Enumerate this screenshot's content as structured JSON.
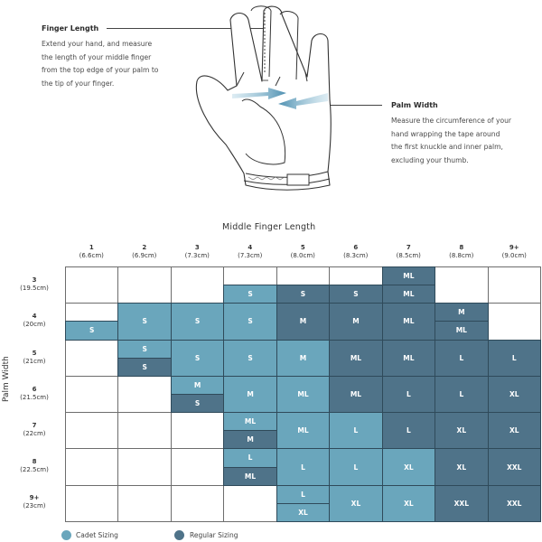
{
  "instructions": {
    "finger_length": {
      "heading": "Finger Length",
      "lines": [
        "Extend your hand, and measure",
        "the length of your middle finger",
        "from the top edge of your palm to",
        "the tip of your finger."
      ]
    },
    "palm_width": {
      "heading": "Palm Width",
      "lines": [
        "Measure the circumference of your",
        "hand wrapping the tape around",
        "the first knuckle and inner palm,",
        "excluding your thumb."
      ]
    }
  },
  "chart": {
    "x_title": "Middle Finger Length",
    "y_title": "Palm Width",
    "columns": [
      {
        "n": "1",
        "cm": "(6.6cm)"
      },
      {
        "n": "2",
        "cm": "(6.9cm)"
      },
      {
        "n": "3",
        "cm": "(7.3cm)"
      },
      {
        "n": "4",
        "cm": "(7.3cm)"
      },
      {
        "n": "5",
        "cm": "(8.0cm)"
      },
      {
        "n": "6",
        "cm": "(8.3cm)"
      },
      {
        "n": "7",
        "cm": "(8.5cm)"
      },
      {
        "n": "8",
        "cm": "(8.8cm)"
      },
      {
        "n": "9+",
        "cm": "(9.0cm)"
      }
    ],
    "rows": [
      {
        "n": "3",
        "cm": "(19.5cm)"
      },
      {
        "n": "4",
        "cm": "(20cm)"
      },
      {
        "n": "5",
        "cm": "(21cm)"
      },
      {
        "n": "6",
        "cm": "(21.5cm)"
      },
      {
        "n": "7",
        "cm": "(22cm)"
      },
      {
        "n": "8",
        "cm": "(22.5cm)"
      },
      {
        "n": "9+",
        "cm": "(23cm)"
      }
    ],
    "legend": {
      "cadet": {
        "label": "Cadet Sizing",
        "color": "#6aa6bc"
      },
      "regular": {
        "label": "Regular Sizing",
        "color": "#4f7389"
      }
    }
  },
  "chart_data": {
    "type": "table",
    "title": "Middle Finger Length vs Palm Width glove size chart",
    "xlabel": "Middle Finger Length",
    "ylabel": "Palm Width",
    "x_categories": [
      "1 (6.6cm)",
      "2 (6.9cm)",
      "3 (7.3cm)",
      "4 (7.3cm)",
      "5 (8.0cm)",
      "6 (8.3cm)",
      "7 (8.5cm)",
      "8 (8.8cm)",
      "9+ (9.0cm)"
    ],
    "y_categories": [
      "3 (19.5cm)",
      "4 (20cm)",
      "5 (21cm)",
      "6 (21.5cm)",
      "7 (22cm)",
      "8 (22.5cm)",
      "9+ (23cm)"
    ],
    "legend": [
      "Cadet Sizing",
      "Regular Sizing"
    ],
    "blocks": [
      {
        "row": 0,
        "col": 3,
        "part": "bottom",
        "size": "S",
        "type": "cadet"
      },
      {
        "row": 0,
        "col": 4,
        "part": "bottom",
        "size": "S",
        "type": "regular"
      },
      {
        "row": 0,
        "col": 5,
        "part": "bottom",
        "size": "S",
        "type": "regular"
      },
      {
        "row": 0,
        "col": 6,
        "part": "top",
        "size": "ML",
        "type": "regular"
      },
      {
        "row": 0,
        "col": 6,
        "part": "bottom",
        "size": "ML",
        "type": "regular"
      },
      {
        "row": 1,
        "col": 0,
        "part": "bottom",
        "size": "S",
        "type": "cadet"
      },
      {
        "row": 1,
        "col": 1,
        "part": "full",
        "size": "S",
        "type": "cadet"
      },
      {
        "row": 1,
        "col": 2,
        "part": "full",
        "size": "S",
        "type": "cadet"
      },
      {
        "row": 1,
        "col": 3,
        "part": "full",
        "size": "S",
        "type": "cadet"
      },
      {
        "row": 1,
        "col": 4,
        "part": "full",
        "size": "M",
        "type": "regular"
      },
      {
        "row": 1,
        "col": 5,
        "part": "full",
        "size": "M",
        "type": "regular"
      },
      {
        "row": 1,
        "col": 6,
        "part": "full",
        "size": "ML",
        "type": "regular"
      },
      {
        "row": 1,
        "col": 7,
        "part": "top",
        "size": "M",
        "type": "regular"
      },
      {
        "row": 1,
        "col": 7,
        "part": "bottom",
        "size": "ML",
        "type": "regular"
      },
      {
        "row": 2,
        "col": 1,
        "part": "top",
        "size": "S",
        "type": "cadet"
      },
      {
        "row": 2,
        "col": 1,
        "part": "bottom",
        "size": "S",
        "type": "regular"
      },
      {
        "row": 2,
        "col": 2,
        "part": "full",
        "size": "S",
        "type": "cadet"
      },
      {
        "row": 2,
        "col": 3,
        "part": "full",
        "size": "S",
        "type": "cadet"
      },
      {
        "row": 2,
        "col": 4,
        "part": "full",
        "size": "M",
        "type": "cadet"
      },
      {
        "row": 2,
        "col": 5,
        "part": "full",
        "size": "ML",
        "type": "regular"
      },
      {
        "row": 2,
        "col": 6,
        "part": "full",
        "size": "ML",
        "type": "regular"
      },
      {
        "row": 2,
        "col": 7,
        "part": "full",
        "size": "L",
        "type": "regular"
      },
      {
        "row": 2,
        "col": 8,
        "part": "full",
        "size": "L",
        "type": "regular"
      },
      {
        "row": 3,
        "col": 2,
        "part": "top",
        "size": "M",
        "type": "cadet"
      },
      {
        "row": 3,
        "col": 2,
        "part": "bottom",
        "size": "S",
        "type": "regular"
      },
      {
        "row": 3,
        "col": 3,
        "part": "full",
        "size": "M",
        "type": "cadet"
      },
      {
        "row": 3,
        "col": 4,
        "part": "full",
        "size": "ML",
        "type": "cadet"
      },
      {
        "row": 3,
        "col": 5,
        "part": "full",
        "size": "ML",
        "type": "regular"
      },
      {
        "row": 3,
        "col": 6,
        "part": "full",
        "size": "L",
        "type": "regular"
      },
      {
        "row": 3,
        "col": 7,
        "part": "full",
        "size": "L",
        "type": "regular"
      },
      {
        "row": 3,
        "col": 8,
        "part": "full",
        "size": "XL",
        "type": "regular"
      },
      {
        "row": 4,
        "col": 3,
        "part": "top",
        "size": "ML",
        "type": "cadet"
      },
      {
        "row": 4,
        "col": 3,
        "part": "bottom",
        "size": "M",
        "type": "regular"
      },
      {
        "row": 4,
        "col": 4,
        "part": "full",
        "size": "ML",
        "type": "cadet"
      },
      {
        "row": 4,
        "col": 5,
        "part": "full",
        "size": "L",
        "type": "cadet"
      },
      {
        "row": 4,
        "col": 6,
        "part": "full",
        "size": "L",
        "type": "regular"
      },
      {
        "row": 4,
        "col": 7,
        "part": "full",
        "size": "XL",
        "type": "regular"
      },
      {
        "row": 4,
        "col": 8,
        "part": "full",
        "size": "XL",
        "type": "regular"
      },
      {
        "row": 5,
        "col": 3,
        "part": "top",
        "size": "L",
        "type": "cadet"
      },
      {
        "row": 5,
        "col": 3,
        "part": "bottom",
        "size": "ML",
        "type": "regular"
      },
      {
        "row": 5,
        "col": 4,
        "part": "full",
        "size": "L",
        "type": "cadet"
      },
      {
        "row": 5,
        "col": 5,
        "part": "full",
        "size": "L",
        "type": "cadet"
      },
      {
        "row": 5,
        "col": 6,
        "part": "full",
        "size": "XL",
        "type": "cadet"
      },
      {
        "row": 5,
        "col": 7,
        "part": "full",
        "size": "XL",
        "type": "regular"
      },
      {
        "row": 5,
        "col": 8,
        "part": "full",
        "size": "XXL",
        "type": "regular"
      },
      {
        "row": 6,
        "col": 4,
        "part": "top",
        "size": "L",
        "type": "cadet"
      },
      {
        "row": 6,
        "col": 4,
        "part": "bottom",
        "size": "XL",
        "type": "cadet"
      },
      {
        "row": 6,
        "col": 5,
        "part": "full",
        "size": "XL",
        "type": "cadet"
      },
      {
        "row": 6,
        "col": 6,
        "part": "full",
        "size": "XL",
        "type": "cadet"
      },
      {
        "row": 6,
        "col": 7,
        "part": "full",
        "size": "XXL",
        "type": "regular"
      },
      {
        "row": 6,
        "col": 8,
        "part": "full",
        "size": "XXL",
        "type": "regular"
      }
    ]
  }
}
